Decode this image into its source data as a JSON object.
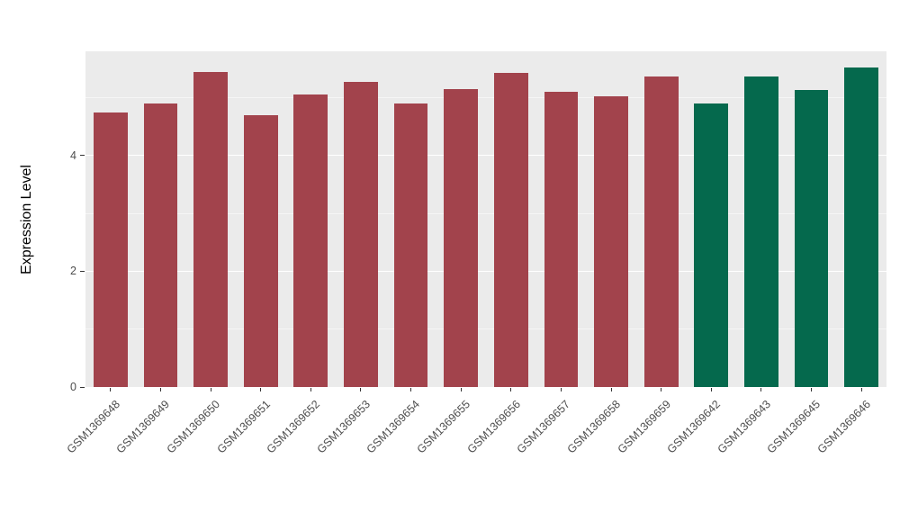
{
  "figure": {
    "background": "#FFFFFF",
    "panel_background": "#EBEBEB",
    "gridline_color": "#FFFFFF",
    "tick_label_color": "#4D4D4D",
    "axis_title_color": "#000000"
  },
  "chart_data": {
    "type": "bar",
    "title": "",
    "xlabel": "",
    "ylabel": "Expression Level",
    "legend": "none",
    "grid": "on",
    "categories": [
      "GSM1369648",
      "GSM1369649",
      "GSM1369650",
      "GSM1369651",
      "GSM1369652",
      "GSM1369653",
      "GSM1369654",
      "GSM1369655",
      "GSM1369656",
      "GSM1369657",
      "GSM1369658",
      "GSM1369659",
      "GSM1369642",
      "GSM1369643",
      "GSM1369645",
      "GSM1369646"
    ],
    "values": [
      4.75,
      4.9,
      5.45,
      4.7,
      5.05,
      5.27,
      4.9,
      5.15,
      5.42,
      5.1,
      5.02,
      5.37,
      4.9,
      5.37,
      5.13,
      5.52
    ],
    "colors": [
      "#A2434C",
      "#A2434C",
      "#A2434C",
      "#A2434C",
      "#A2434C",
      "#A2434C",
      "#A2434C",
      "#A2434C",
      "#A2434C",
      "#A2434C",
      "#A2434C",
      "#A2434C",
      "#05694D",
      "#05694D",
      "#05694D",
      "#05694D"
    ],
    "color_groups": [
      {
        "color": "#A2434C",
        "categories_count": 12
      },
      {
        "color": "#05694D",
        "categories_count": 4
      }
    ],
    "ylim": [
      0,
      5.8
    ],
    "yticks": [
      0,
      2,
      4
    ],
    "minor_gridlines": [
      1,
      3,
      5
    ],
    "x_label_rotation_deg": 45
  }
}
